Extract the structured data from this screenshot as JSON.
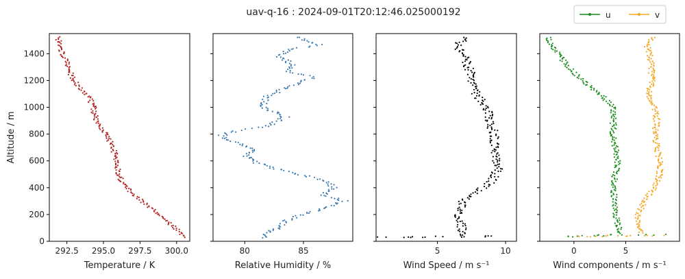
{
  "title": "uav-q-16 : 2024-09-01T20:12:46.025000192",
  "legend": {
    "placement": "top-right",
    "items": [
      {
        "label": "u",
        "color": "#1a8c1a"
      },
      {
        "label": "v",
        "color": "#f5a623"
      }
    ]
  },
  "chart_data": [
    {
      "type": "scatter",
      "xlabel": "Temperature / K",
      "ylabel": "Altitude / m",
      "xlim": [
        291.3,
        300.9
      ],
      "ylim": [
        0,
        1550
      ],
      "xticks": [
        "292.5",
        "295.0",
        "297.5",
        "300.0"
      ],
      "xtick_values": [
        292.5,
        295.0,
        297.5,
        300.0
      ],
      "yticks": [
        "0",
        "200",
        "400",
        "600",
        "800",
        "1000",
        "1200",
        "1400"
      ],
      "ytick_values": [
        0,
        200,
        400,
        600,
        800,
        1000,
        1200,
        1400
      ],
      "series": [
        {
          "color": "#b22222",
          "spread": 0.2,
          "points": [
            [
              300.5,
              30
            ],
            [
              300.1,
              80
            ],
            [
              299.3,
              150
            ],
            [
              298.5,
              230
            ],
            [
              297.6,
              300
            ],
            [
              296.8,
              380
            ],
            [
              296.2,
              450
            ],
            [
              296.0,
              520
            ],
            [
              295.9,
              600
            ],
            [
              295.7,
              680
            ],
            [
              295.4,
              760
            ],
            [
              295.0,
              830
            ],
            [
              294.6,
              880
            ],
            [
              294.4,
              940
            ],
            [
              294.3,
              1000
            ],
            [
              294.0,
              1080
            ],
            [
              293.3,
              1160
            ],
            [
              292.8,
              1240
            ],
            [
              292.5,
              1330
            ],
            [
              292.1,
              1420
            ],
            [
              291.9,
              1480
            ],
            [
              292.0,
              1530
            ]
          ]
        }
      ]
    },
    {
      "type": "scatter",
      "xlabel": "Relative Humidity / %",
      "ylabel": "",
      "xlim": [
        77.3,
        89.2
      ],
      "ylim": [
        0,
        1550
      ],
      "xticks": [
        "80",
        "85"
      ],
      "xtick_values": [
        80,
        85
      ],
      "yticks": [],
      "ytick_values": [
        0,
        200,
        400,
        600,
        800,
        1000,
        1200,
        1400
      ],
      "series": [
        {
          "color": "#3a78b0",
          "spread": 0.35,
          "points": [
            [
              81.5,
              30
            ],
            [
              82.0,
              60
            ],
            [
              82.8,
              100
            ],
            [
              83.5,
              150
            ],
            [
              84.8,
              200
            ],
            [
              86.5,
              240
            ],
            [
              88.5,
              300
            ],
            [
              86.5,
              340
            ],
            [
              87.5,
              400
            ],
            [
              87.0,
              450
            ],
            [
              85.5,
              480
            ],
            [
              83.5,
              520
            ],
            [
              82.0,
              560
            ],
            [
              80.5,
              600
            ],
            [
              80.2,
              640
            ],
            [
              81.0,
              680
            ],
            [
              79.2,
              740
            ],
            [
              78.0,
              790
            ],
            [
              79.5,
              830
            ],
            [
              82.0,
              860
            ],
            [
              83.5,
              930
            ],
            [
              81.5,
              1000
            ],
            [
              81.8,
              1080
            ],
            [
              83.2,
              1130
            ],
            [
              85.8,
              1220
            ],
            [
              83.5,
              1270
            ],
            [
              84.0,
              1320
            ],
            [
              83.0,
              1380
            ],
            [
              84.0,
              1440
            ],
            [
              86.5,
              1460
            ],
            [
              85.0,
              1500
            ],
            [
              84.5,
              1530
            ]
          ]
        }
      ]
    },
    {
      "type": "scatter",
      "xlabel": "Wind Speed / m s⁻¹",
      "ylabel": "",
      "xlim": [
        0.5,
        10.8
      ],
      "ylim": [
        0,
        1550
      ],
      "xticks": [
        "5",
        "10"
      ],
      "xtick_values": [
        5,
        10
      ],
      "yticks": [],
      "ytick_values": [
        0,
        200,
        400,
        600,
        800,
        1000,
        1200,
        1400
      ],
      "series": [
        {
          "color": "#000000",
          "spread": 0.35,
          "points": [
            [
              6.8,
              40
            ],
            [
              6.8,
              100
            ],
            [
              6.6,
              200
            ],
            [
              6.8,
              300
            ],
            [
              7.5,
              350
            ],
            [
              8.3,
              400
            ],
            [
              9.0,
              450
            ],
            [
              9.5,
              550
            ],
            [
              9.2,
              650
            ],
            [
              9.2,
              800
            ],
            [
              8.8,
              900
            ],
            [
              8.6,
              1000
            ],
            [
              7.8,
              1100
            ],
            [
              7.5,
              1200
            ],
            [
              7.3,
              1300
            ],
            [
              6.8,
              1400
            ],
            [
              6.5,
              1480
            ],
            [
              7.2,
              1530
            ]
          ]
        },
        {
          "color": "#000000",
          "spread": 0.6,
          "points": [
            [
              1.0,
              30
            ],
            [
              3.0,
              30
            ],
            [
              5.0,
              35
            ],
            [
              8.0,
              35
            ],
            [
              9.5,
              40
            ]
          ]
        }
      ]
    },
    {
      "type": "scatter",
      "xlabel": "Wind components / m s⁻¹",
      "ylabel": "",
      "xlim": [
        -3.3,
        10.2
      ],
      "ylim": [
        0,
        1550
      ],
      "xticks": [
        "0",
        "5"
      ],
      "xtick_values": [
        0,
        5
      ],
      "yticks": [],
      "ytick_values": [
        0,
        200,
        400,
        600,
        800,
        1000,
        1200,
        1400
      ],
      "series": [
        {
          "name": "u",
          "color": "#1a8c1a",
          "spread": 0.3,
          "points": [
            [
              4.5,
              60
            ],
            [
              4.0,
              200
            ],
            [
              3.8,
              400
            ],
            [
              4.2,
              600
            ],
            [
              3.8,
              800
            ],
            [
              3.8,
              1000
            ],
            [
              2.5,
              1100
            ],
            [
              0.8,
              1200
            ],
            [
              -0.5,
              1300
            ],
            [
              -1.5,
              1400
            ],
            [
              -2.3,
              1480
            ],
            [
              -2.5,
              1530
            ]
          ]
        },
        {
          "name": "u",
          "color": "#1a8c1a",
          "spread": 0.8,
          "points": [
            [
              -1.0,
              35
            ],
            [
              1.0,
              40
            ],
            [
              3.0,
              45
            ],
            [
              5.5,
              50
            ],
            [
              9.0,
              50
            ]
          ]
        },
        {
          "name": "v",
          "color": "#f5a623",
          "spread": 0.3,
          "points": [
            [
              6.5,
              60
            ],
            [
              6.2,
              200
            ],
            [
              6.8,
              300
            ],
            [
              7.8,
              400
            ],
            [
              8.3,
              500
            ],
            [
              8.3,
              600
            ],
            [
              8.0,
              700
            ],
            [
              7.8,
              800
            ],
            [
              8.0,
              900
            ],
            [
              7.8,
              1000
            ],
            [
              7.2,
              1100
            ],
            [
              7.5,
              1200
            ],
            [
              7.5,
              1300
            ],
            [
              7.3,
              1400
            ],
            [
              7.0,
              1480
            ],
            [
              8.0,
              1530
            ]
          ]
        },
        {
          "name": "v",
          "color": "#f5a623",
          "spread": 0.8,
          "points": [
            [
              0.0,
              35
            ],
            [
              2.0,
              35
            ],
            [
              4.0,
              40
            ],
            [
              6.5,
              40
            ],
            [
              8.5,
              40
            ]
          ]
        }
      ]
    }
  ]
}
